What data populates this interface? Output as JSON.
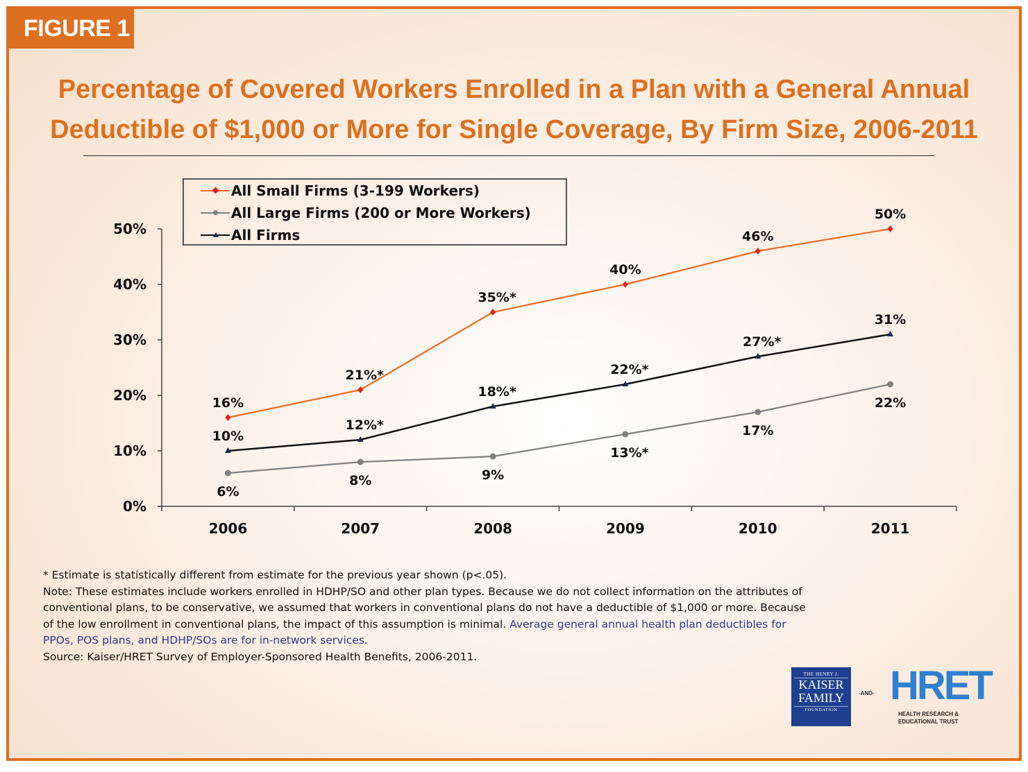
{
  "figure_label": "FIGURE 1",
  "title_lines": [
    "Percentage of Covered Workers Enrolled in a Plan with a General Annual",
    "Deductible of $1,000 or More for Single Coverage, By Firm Size, 2006-2011"
  ],
  "chart_data": {
    "type": "line",
    "title": "Percentage of Covered Workers Enrolled in a Plan with a General Annual Deductible of $1,000 or More for Single Coverage, By Firm Size, 2006-2011",
    "xlabel": "",
    "ylabel": "",
    "x": [
      "2006",
      "2007",
      "2008",
      "2009",
      "2010",
      "2011"
    ],
    "ylim": [
      0,
      50
    ],
    "yticks": [
      0,
      10,
      20,
      30,
      40,
      50
    ],
    "ytick_labels": [
      "0%",
      "10%",
      "20%",
      "30%",
      "40%",
      "50%"
    ],
    "grid": false,
    "legend_position": "top-left",
    "series": [
      {
        "name": "All Small Firms (3-199 Workers)",
        "color": "#f26a21",
        "marker": "diamond",
        "values": [
          16,
          21,
          35,
          40,
          46,
          50
        ],
        "labels": [
          "16%",
          "21%*",
          "35%*",
          "40%",
          "46%",
          "50%"
        ],
        "label_position": [
          "above",
          "above",
          "above",
          "above",
          "above",
          "above"
        ]
      },
      {
        "name": "All Large Firms (200 or More Workers)",
        "color": "#808080",
        "marker": "circle",
        "values": [
          6,
          8,
          9,
          13,
          17,
          22
        ],
        "labels": [
          "6%",
          "8%",
          "9%",
          "13%*",
          "17%",
          "22%"
        ],
        "label_position": [
          "below",
          "below",
          "below",
          "below",
          "below",
          "below"
        ]
      },
      {
        "name": "All Firms",
        "color": "#111111",
        "marker": "triangle",
        "values": [
          10,
          12,
          18,
          22,
          27,
          31
        ],
        "labels": [
          "10%",
          "12%*",
          "18%*",
          "22%*",
          "27%*",
          "31%"
        ],
        "label_position": [
          "above",
          "above",
          "above",
          "above",
          "above",
          "above"
        ]
      }
    ],
    "annotations": [
      "* Estimate is statistically different from estimate for the previous year shown (p<.05)."
    ]
  },
  "notes": {
    "asterisk": "* Estimate is statistically different from estimate for the previous year shown (p<.05).",
    "note_lines": [
      "Note: These estimates include workers enrolled in HDHP/SO and other plan types.  Because we do not collect information on the attributes of",
      "conventional plans, to be conservative, we assumed that workers in conventional plans do not have a deductible of $1,000 or more.  Because",
      "of the low enrollment in conventional plans, the impact of this assumption is minimal.  "
    ],
    "link_part1": "Average general annual health plan deductibles for",
    "link_part2": "PPOs, POS plans, and HDHP/SOs are for in-network services.",
    "source": "Source: Kaiser/HRET Survey of Employer-Sponsored Health Benefits, 2006-2011."
  },
  "logos": {
    "kff_top": "THE HENRY J.",
    "kff_line1": "KAISER",
    "kff_line2": "FAMILY",
    "kff_bottom": "FOUNDATION",
    "and": "-AND-",
    "hret": "HRET",
    "hret_sub1": "HEALTH RESEARCH &",
    "hret_sub2": "EDUCATIONAL TRUST"
  }
}
